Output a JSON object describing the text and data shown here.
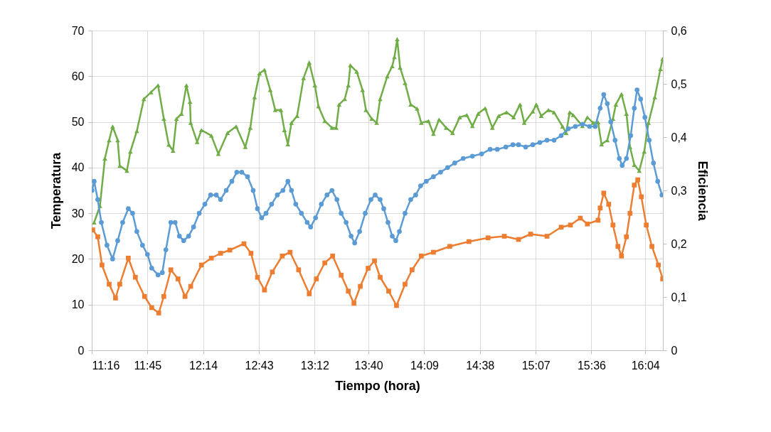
{
  "chart_data": {
    "type": "line",
    "xlabel": "Tiempo (hora)",
    "ylabel": "Temperatura",
    "y2label": "Eficiencia",
    "grid": true,
    "xlim": [
      11.267,
      16.22
    ],
    "xticks": [
      {
        "value": 11.267,
        "label": "11:16"
      },
      {
        "value": 11.75,
        "label": "11:45"
      },
      {
        "value": 12.233,
        "label": "12:14"
      },
      {
        "value": 12.717,
        "label": "12:43"
      },
      {
        "value": 13.2,
        "label": "13:12"
      },
      {
        "value": 13.667,
        "label": "13:40"
      },
      {
        "value": 14.15,
        "label": "14:09"
      },
      {
        "value": 14.633,
        "label": "14:38"
      },
      {
        "value": 15.117,
        "label": "15:07"
      },
      {
        "value": 15.6,
        "label": "15:36"
      },
      {
        "value": 16.067,
        "label": "16:04"
      }
    ],
    "ylim": [
      0,
      70
    ],
    "yticks": [
      0,
      10,
      20,
      30,
      40,
      50,
      60,
      70
    ],
    "y2lim": [
      0,
      0.6
    ],
    "y2ticks": [
      0,
      {
        "value": 0.1,
        "label": "0,1"
      },
      {
        "value": 0.2,
        "label": "0,2"
      },
      {
        "value": 0.3,
        "label": "0,3"
      },
      {
        "value": 0.4,
        "label": "0,4"
      },
      {
        "value": 0.5,
        "label": "0,5"
      },
      {
        "value": 0.6,
        "label": "0,6"
      }
    ],
    "series": [
      {
        "color": "#70ad47",
        "marker": "triangle",
        "x": [
          11.288,
          11.338,
          11.381,
          11.418,
          11.448,
          11.492,
          11.51,
          11.572,
          11.602,
          11.658,
          11.719,
          11.781,
          11.842,
          11.892,
          11.935,
          11.972,
          12.002,
          12.045,
          12.088,
          12.119,
          12.125,
          12.181,
          12.218,
          12.304,
          12.365,
          12.445,
          12.519,
          12.599,
          12.642,
          12.679,
          12.722,
          12.765,
          12.815,
          12.858,
          12.907,
          12.938,
          12.968,
          12.999,
          13.048,
          13.104,
          13.153,
          13.202,
          13.233,
          13.288,
          13.35,
          13.387,
          13.412,
          13.461,
          13.492,
          13.51,
          13.565,
          13.615,
          13.645,
          13.695,
          13.738,
          13.768,
          13.83,
          13.873,
          13.892,
          13.916,
          13.941,
          13.984,
          14.033,
          14.088,
          14.125,
          14.187,
          14.23,
          14.279,
          14.341,
          14.396,
          14.458,
          14.519,
          14.568,
          14.618,
          14.679,
          14.741,
          14.796,
          14.864,
          14.925,
          14.981,
          15.018,
          15.092,
          15.122,
          15.165,
          15.227,
          15.276,
          15.35,
          15.381,
          15.412,
          15.442,
          15.522,
          15.565,
          15.615,
          15.658,
          15.688,
          15.738,
          15.787,
          15.812,
          15.861,
          15.904,
          15.935,
          15.972,
          16.015,
          16.058,
          16.095,
          16.15,
          16.199,
          16.218
        ],
        "values": [
          28,
          31.6,
          42,
          46,
          49,
          46,
          40.4,
          39.3,
          43.5,
          48,
          55,
          56.5,
          58,
          50.7,
          45,
          43.7,
          50.7,
          51.8,
          58,
          54.4,
          49.8,
          45.6,
          48.2,
          47,
          43,
          47.6,
          49,
          44.5,
          48.7,
          55.4,
          60.6,
          61.4,
          57,
          52.6,
          52.6,
          48.2,
          45.1,
          49.8,
          51.3,
          59.6,
          63,
          58,
          53.4,
          50.2,
          48.7,
          48.7,
          53.8,
          55,
          58,
          62.4,
          61,
          57,
          52.6,
          50.7,
          49.8,
          55,
          60,
          62.2,
          64.2,
          68.1,
          61.9,
          58.5,
          53.8,
          52.9,
          49.8,
          50.2,
          47.4,
          50.5,
          48.7,
          47.6,
          51,
          51.5,
          49.1,
          51.8,
          53,
          48.7,
          51.3,
          52.1,
          51,
          53.8,
          49.8,
          52.3,
          53.8,
          51.3,
          52.6,
          52.1,
          49,
          47.6,
          52.1,
          51.5,
          49.1,
          51,
          49.8,
          49.9,
          45.1,
          46,
          50.7,
          53.8,
          56.1,
          51.8,
          44.5,
          40.6,
          39.3,
          43.5,
          49.8,
          55.4,
          61.6,
          63.8
        ]
      },
      {
        "color": "#5b9bd5",
        "marker": "circle",
        "x": [
          11.27,
          11.288,
          11.319,
          11.35,
          11.399,
          11.448,
          11.492,
          11.535,
          11.584,
          11.621,
          11.658,
          11.707,
          11.75,
          11.787,
          11.842,
          11.879,
          11.91,
          11.953,
          11.99,
          12.027,
          12.064,
          12.107,
          12.15,
          12.199,
          12.248,
          12.298,
          12.347,
          12.384,
          12.433,
          12.482,
          12.525,
          12.568,
          12.618,
          12.667,
          12.704,
          12.741,
          12.778,
          12.827,
          12.876,
          12.925,
          12.968,
          12.999,
          13.036,
          13.085,
          13.135,
          13.165,
          13.208,
          13.258,
          13.307,
          13.35,
          13.393,
          13.43,
          13.473,
          13.516,
          13.547,
          13.59,
          13.639,
          13.688,
          13.725,
          13.768,
          13.799,
          13.836,
          13.873,
          13.904,
          13.935,
          13.984,
          14.033,
          14.076,
          14.119,
          14.168,
          14.23,
          14.292,
          14.353,
          14.415,
          14.488,
          14.568,
          14.648,
          14.722,
          14.784,
          14.858,
          14.919,
          14.968,
          15.03,
          15.092,
          15.153,
          15.215,
          15.276,
          15.338,
          15.399,
          15.461,
          15.522,
          15.584,
          15.633,
          15.676,
          15.707,
          15.738,
          15.768,
          15.805,
          15.842,
          15.867,
          15.904,
          15.941,
          15.972,
          15.996,
          16.027,
          16.064,
          16.101,
          16.138,
          16.175,
          16.212
        ],
        "values": [
          35,
          37,
          33,
          28,
          23,
          20,
          24,
          28,
          31,
          30,
          26,
          23,
          21,
          18,
          16.5,
          17,
          22,
          28,
          28,
          25,
          24,
          25,
          27,
          30,
          32,
          34,
          34,
          33,
          35,
          37,
          39,
          39,
          38,
          35,
          31,
          29,
          30,
          32,
          34,
          35,
          37,
          35,
          32,
          30,
          28,
          27,
          29,
          32,
          34,
          35,
          33,
          30,
          28,
          25,
          23.5,
          26,
          30,
          33,
          34,
          33,
          31,
          28,
          25,
          24,
          26,
          30,
          33,
          34,
          36,
          37,
          38,
          39,
          40,
          41,
          42,
          42.5,
          43,
          44,
          44,
          44.5,
          45,
          45,
          44.5,
          45,
          45.5,
          46,
          46,
          47,
          48.5,
          49,
          49.5,
          49,
          49,
          53,
          56,
          54,
          50,
          46,
          42,
          40.5,
          42,
          47,
          53,
          57,
          55,
          51,
          46,
          41,
          37,
          34
        ]
      },
      {
        "color": "#ed7d31",
        "marker": "square",
        "axis": "y2",
        "x": [
          11.276,
          11.319,
          11.356,
          11.418,
          11.473,
          11.51,
          11.584,
          11.645,
          11.725,
          11.787,
          11.848,
          11.892,
          11.953,
          12.015,
          12.076,
          12.125,
          12.218,
          12.304,
          12.384,
          12.464,
          12.587,
          12.648,
          12.704,
          12.765,
          12.833,
          12.919,
          12.987,
          13.061,
          13.153,
          13.215,
          13.288,
          13.356,
          13.43,
          13.492,
          13.541,
          13.596,
          13.664,
          13.719,
          13.768,
          13.842,
          13.91,
          13.984,
          14.045,
          14.125,
          14.23,
          14.372,
          14.538,
          14.704,
          14.845,
          14.968,
          15.073,
          15.215,
          15.338,
          15.418,
          15.504,
          15.565,
          15.658,
          15.676,
          15.707,
          15.75,
          15.787,
          15.83,
          15.861,
          15.904,
          15.935,
          15.972,
          16.002,
          16.033,
          16.076,
          16.125,
          16.181,
          16.218
        ],
        "values": [
          0.226,
          0.213,
          0.16,
          0.124,
          0.098,
          0.124,
          0.173,
          0.137,
          0.101,
          0.08,
          0.07,
          0.101,
          0.151,
          0.134,
          0.101,
          0.12,
          0.16,
          0.173,
          0.182,
          0.188,
          0.2,
          0.182,
          0.137,
          0.113,
          0.147,
          0.177,
          0.184,
          0.151,
          0.106,
          0.134,
          0.164,
          0.177,
          0.141,
          0.111,
          0.088,
          0.12,
          0.154,
          0.168,
          0.137,
          0.111,
          0.084,
          0.124,
          0.151,
          0.177,
          0.184,
          0.195,
          0.204,
          0.211,
          0.214,
          0.208,
          0.218,
          0.214,
          0.231,
          0.235,
          0.248,
          0.237,
          0.244,
          0.267,
          0.295,
          0.274,
          0.235,
          0.195,
          0.177,
          0.213,
          0.257,
          0.31,
          0.32,
          0.288,
          0.235,
          0.195,
          0.16,
          0.134
        ]
      }
    ]
  }
}
